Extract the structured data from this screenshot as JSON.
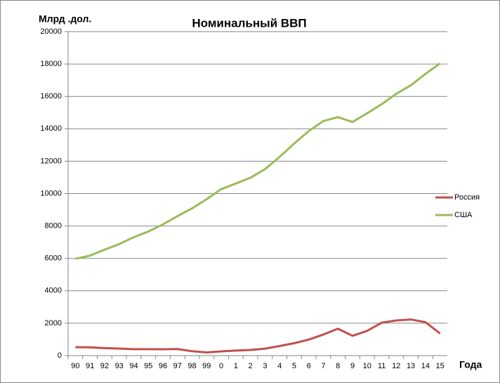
{
  "chart_data": {
    "type": "line",
    "title": "Номинальный ВВП",
    "y_label": "Млрд .дол.",
    "x_label": "Года",
    "categories": [
      "90",
      "91",
      "92",
      "93",
      "94",
      "95",
      "96",
      "97",
      "98",
      "99",
      "0",
      "1",
      "2",
      "3",
      "4",
      "5",
      "6",
      "7",
      "8",
      "9",
      "10",
      "11",
      "12",
      "13",
      "14",
      "15"
    ],
    "series": [
      {
        "name": "Россия",
        "color": "#c0504d",
        "values": [
          520,
          510,
          460,
          435,
          395,
          395,
          390,
          405,
          270,
          195,
          260,
          307,
          345,
          430,
          591,
          764,
          990,
          1300,
          1660,
          1222,
          1525,
          2031,
          2170,
          2231,
          2064,
          1366
        ]
      },
      {
        "name": "США",
        "color": "#9bbb59",
        "values": [
          5980,
          6170,
          6540,
          6880,
          7310,
          7660,
          8100,
          8610,
          9090,
          9660,
          10280,
          10620,
          10980,
          11510,
          12270,
          13090,
          13860,
          14480,
          14720,
          14420,
          14960,
          15520,
          16160,
          16690,
          17390,
          18040
        ]
      }
    ],
    "ylim": [
      0,
      20000
    ],
    "yticks": [
      0,
      2000,
      4000,
      6000,
      8000,
      10000,
      12000,
      14000,
      16000,
      18000,
      20000
    ],
    "grid": true,
    "legend": "right"
  }
}
